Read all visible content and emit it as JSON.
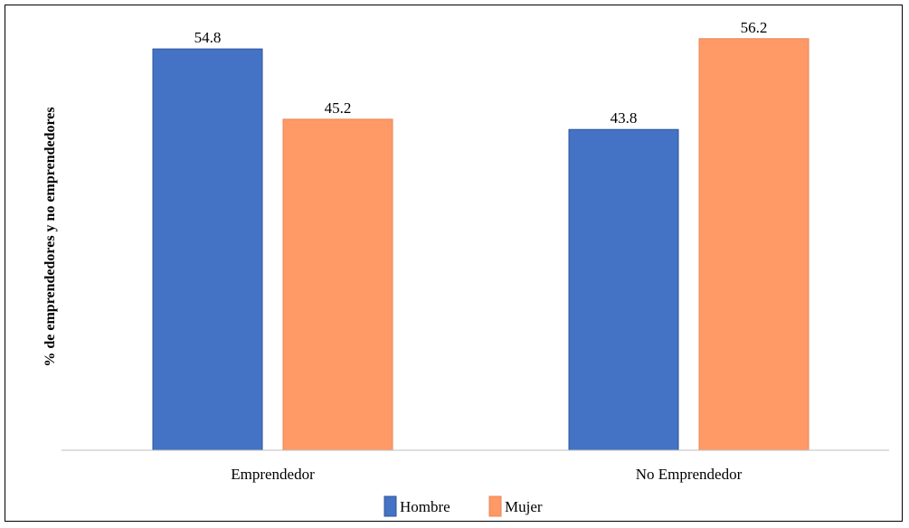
{
  "chart_data": {
    "type": "bar",
    "title": "",
    "xlabel": "",
    "ylabel": "% de emprendedores y no emprendedores",
    "categories": [
      "Emprendedor",
      "No Emprendedor"
    ],
    "series": [
      {
        "name": "Hombre",
        "values": [
          54.8,
          43.8
        ],
        "color": "#4472C4"
      },
      {
        "name": "Mujer",
        "values": [
          45.2,
          56.2
        ],
        "color": "#FF9966"
      }
    ],
    "ylim": [
      0,
      60
    ],
    "grid": false,
    "legend_position": "bottom"
  }
}
